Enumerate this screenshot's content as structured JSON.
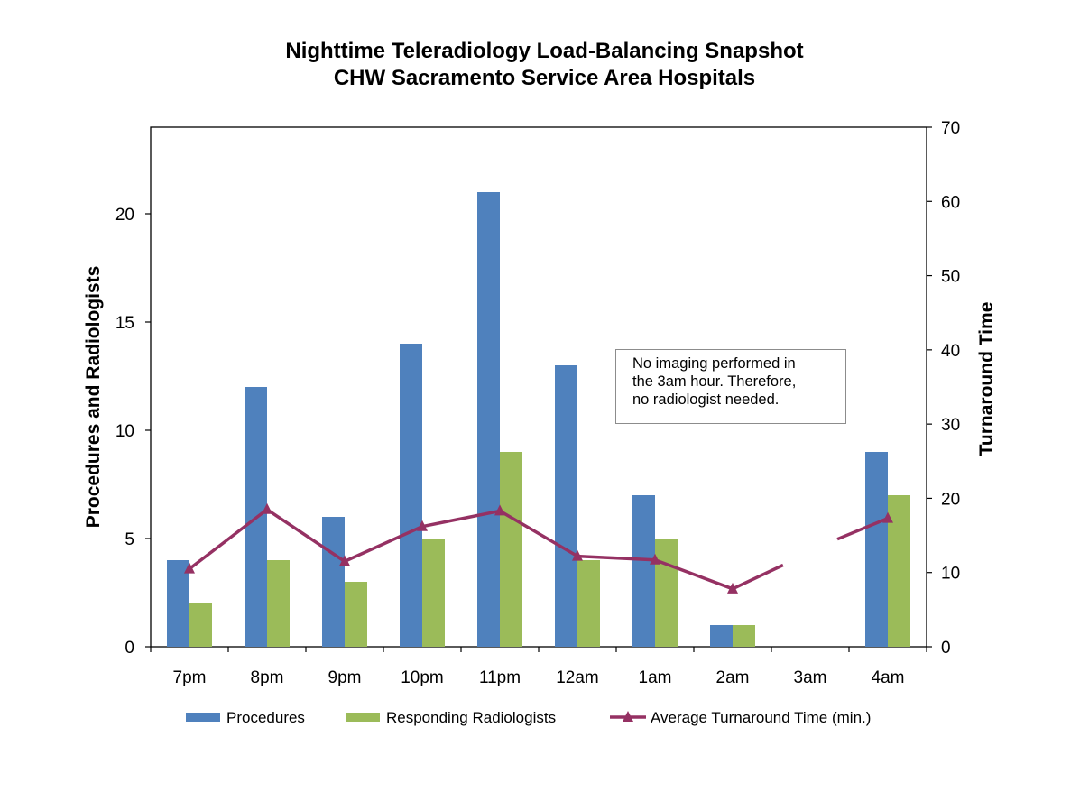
{
  "chart_data": {
    "type": "bar",
    "title_lines": [
      "Nighttime Teleradiology Load-Balancing Snapshot",
      "CHW Sacramento Service Area Hospitals"
    ],
    "categories": [
      "7pm",
      "8pm",
      "9pm",
      "10pm",
      "11pm",
      "12am",
      "1am",
      "2am",
      "3am",
      "4am"
    ],
    "ylabel": "Procedures and Radiologists",
    "y2label": "Turnaround Time",
    "ylim": [
      0,
      24
    ],
    "y_ticks": [
      0,
      5,
      10,
      15,
      20
    ],
    "y2lim": [
      0,
      70
    ],
    "y2_ticks": [
      0,
      10,
      20,
      30,
      40,
      50,
      60,
      70
    ],
    "series": [
      {
        "name": "Procedures",
        "kind": "bar",
        "axis": "left",
        "color": "#4f81bd",
        "values": [
          4,
          12,
          6,
          14,
          21,
          13,
          7,
          1,
          0,
          9
        ]
      },
      {
        "name": "Responding Radiologists",
        "kind": "bar",
        "axis": "left",
        "color": "#9bbb59",
        "values": [
          2,
          4,
          3,
          5,
          9,
          4,
          5,
          1,
          0,
          7
        ]
      },
      {
        "name": "Average Turnaround Time (min.)",
        "kind": "line",
        "axis": "right",
        "color": "#953163",
        "marker": "triangle",
        "values": [
          10.5,
          18.5,
          11.5,
          16.2,
          18.3,
          12.2,
          11.7,
          7.8,
          null,
          17.3
        ],
        "partial_segments": [
          {
            "from": 7,
            "to": 8,
            "value_at_end": 11
          },
          {
            "from": 8,
            "to": 9,
            "value_at_start": 14.5
          }
        ]
      }
    ],
    "annotation": [
      "No imaging performed in",
      "the 3am hour. Therefore,",
      "no radiologist needed."
    ],
    "legend_position": "bottom",
    "grid": false
  }
}
